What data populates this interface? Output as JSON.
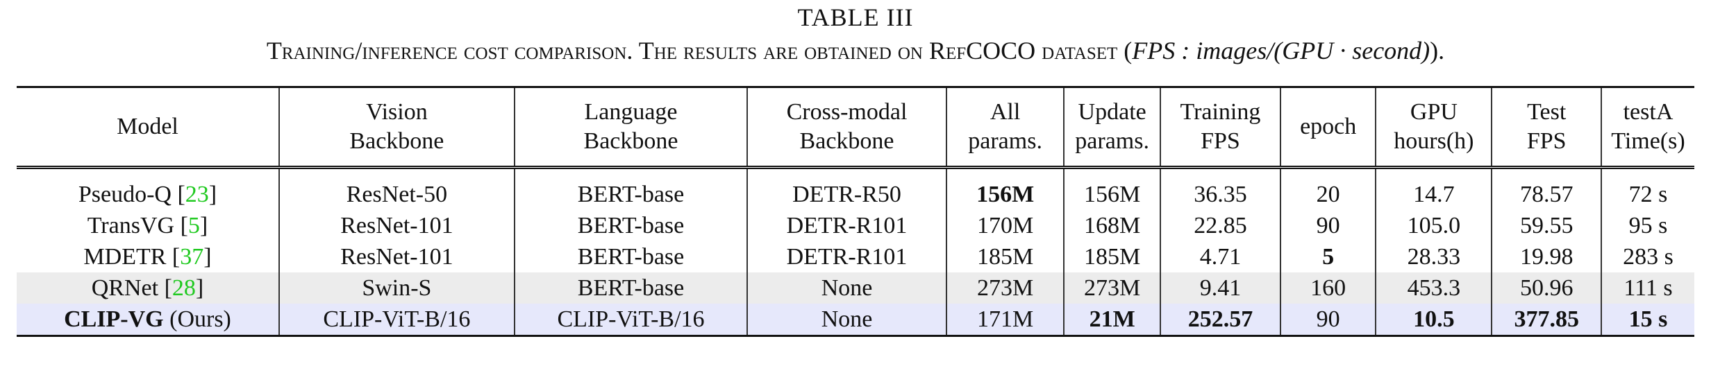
{
  "table_title": "TABLE III",
  "caption": {
    "prefix": "Training/inference cost comparison. The results are obtained on RefCOCO dataset (",
    "math": "FPS : images/(GPU · second)",
    "suffix": ")."
  },
  "columns": [
    {
      "line1": "Model",
      "line2": ""
    },
    {
      "line1": "Vision",
      "line2": "Backbone"
    },
    {
      "line1": "Language",
      "line2": "Backbone"
    },
    {
      "line1": "Cross-modal",
      "line2": "Backbone"
    },
    {
      "line1": "All",
      "line2": "params."
    },
    {
      "line1": "Update",
      "line2": "params."
    },
    {
      "line1": "Training",
      "line2": "FPS"
    },
    {
      "line1": "epoch",
      "line2": ""
    },
    {
      "line1": "GPU",
      "line2": "hours(h)"
    },
    {
      "line1": "Test",
      "line2": "FPS"
    },
    {
      "line1": "testA",
      "line2": "Time(s)"
    }
  ],
  "rows": [
    {
      "model": "Pseudo-Q",
      "cite": "23",
      "suffix": "",
      "vision": "ResNet-50",
      "language": "BERT-base",
      "cross": "DETR-R50",
      "all_params": "156M",
      "update_params": "156M",
      "train_fps": "36.35",
      "epoch": "20",
      "gpu_hours": "14.7",
      "test_fps": "78.57",
      "time": "72 s"
    },
    {
      "model": "TransVG",
      "cite": "5",
      "suffix": "",
      "vision": "ResNet-101",
      "language": "BERT-base",
      "cross": "DETR-R101",
      "all_params": "170M",
      "update_params": "168M",
      "train_fps": "22.85",
      "epoch": "90",
      "gpu_hours": "105.0",
      "test_fps": "59.55",
      "time": "95 s"
    },
    {
      "model": "MDETR",
      "cite": "37",
      "suffix": "",
      "vision": "ResNet-101",
      "language": "BERT-base",
      "cross": "DETR-R101",
      "all_params": "185M",
      "update_params": "185M",
      "train_fps": "4.71",
      "epoch": "5",
      "gpu_hours": "28.33",
      "test_fps": "19.98",
      "time": "283 s"
    },
    {
      "model": "QRNet",
      "cite": "28",
      "suffix": "",
      "vision": "Swin-S",
      "language": "BERT-base",
      "cross": "None",
      "all_params": "273M",
      "update_params": "273M",
      "train_fps": "9.41",
      "epoch": "160",
      "gpu_hours": "453.3",
      "test_fps": "50.96",
      "time": "111 s"
    },
    {
      "model": "CLIP-VG",
      "cite": "",
      "suffix": "(Ours)",
      "vision": "CLIP-ViT-B/16",
      "language": "CLIP-ViT-B/16",
      "cross": "None",
      "all_params": "171M",
      "update_params": "21M",
      "train_fps": "252.57",
      "epoch": "90",
      "gpu_hours": "10.5",
      "test_fps": "377.85",
      "time": "15 s"
    }
  ]
}
